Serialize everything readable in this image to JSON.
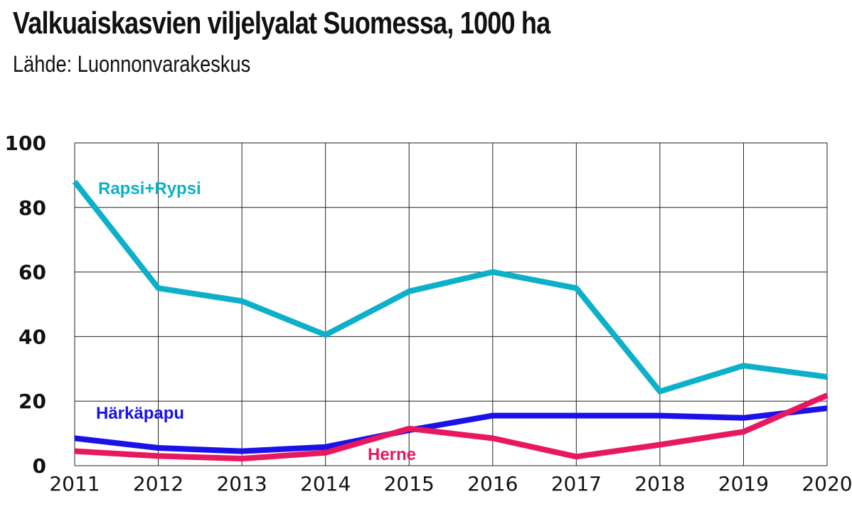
{
  "title": "Valkuaiskasvien viljelyalat Suomessa, 1000 ha",
  "subtitle": "Lähde:  Luonnonvarakeskus",
  "chart_data": {
    "type": "line",
    "title": "Valkuaiskasvien viljelyalat Suomessa, 1000 ha",
    "subtitle": "Lähde:  Luonnonvarakeskus",
    "x": [
      "2011",
      "2012",
      "2013",
      "2014",
      "2015",
      "2016",
      "2017",
      "2018",
      "2019",
      "2020"
    ],
    "ylim": [
      0,
      100
    ],
    "yticks": [
      0,
      20,
      40,
      60,
      80,
      100
    ],
    "grid": true,
    "legend": "inline labels",
    "series": [
      {
        "name": "Rapsi+Rypsi",
        "color": "#0cb0c8",
        "values": [
          88,
          55,
          51,
          40.5,
          54,
          60,
          55,
          23,
          31,
          27.5
        ]
      },
      {
        "name": "Härkäpapu",
        "color": "#1a12e6",
        "values": [
          8.5,
          5.5,
          4.5,
          5.8,
          11,
          15.5,
          15.5,
          15.5,
          14.8,
          17.8
        ]
      },
      {
        "name": "Herne",
        "color": "#e8185f",
        "values": [
          4.5,
          3,
          2.2,
          4,
          11.5,
          8.5,
          2.8,
          6.5,
          10.5,
          21.8
        ]
      }
    ]
  }
}
